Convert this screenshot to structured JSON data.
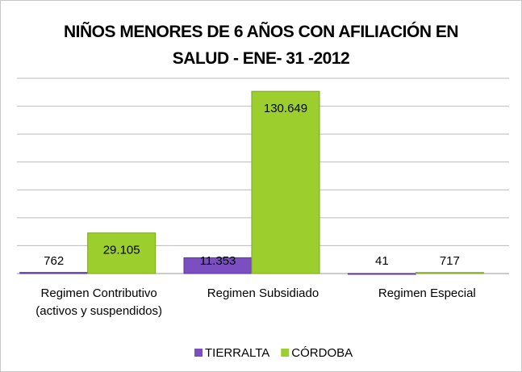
{
  "chart_data": {
    "type": "bar",
    "title": "NIÑOS MENORES DE 6 AÑOS CON AFILIACIÓN EN SALUD - ENE- 31 -2012",
    "categories": [
      "Regimen Contributivo (activos y suspendidos)",
      "Regimen Subsidiado",
      "Regimen Especial"
    ],
    "series": [
      {
        "name": "TIERRALTA",
        "color": "#7b4fc2",
        "values": [
          762,
          11353,
          41
        ],
        "value_labels": [
          "762",
          "11.353",
          "41"
        ]
      },
      {
        "name": "CÓRDOBA",
        "color": "#9ccf2e",
        "values": [
          29105,
          130649,
          717
        ],
        "value_labels": [
          "29.105",
          "130.649",
          "717"
        ]
      }
    ],
    "ylim": [
      0,
      140000
    ],
    "yticks": [
      0,
      20000,
      40000,
      60000,
      80000,
      100000,
      120000,
      140000
    ],
    "grid": true,
    "legend": "bottom"
  }
}
